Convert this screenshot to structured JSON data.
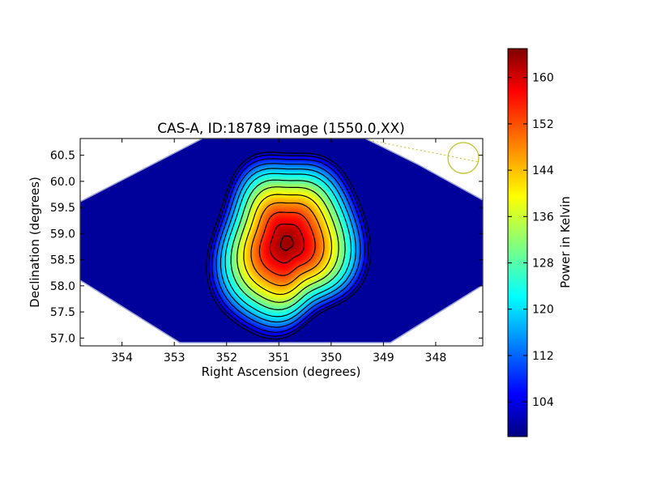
{
  "chart_data": {
    "type": "heatmap",
    "title": "CAS-A, ID:18789 image (1550.0,XX)",
    "xlabel": "Right Ascension (degrees)",
    "ylabel": "Declination (degrees)",
    "xlim": [
      354.8,
      347.1
    ],
    "ylim": [
      56.85,
      60.82
    ],
    "x_ticks": [
      {
        "value": 354,
        "label": "354"
      },
      {
        "value": 353,
        "label": "353"
      },
      {
        "value": 352,
        "label": "352"
      },
      {
        "value": 351,
        "label": "351"
      },
      {
        "value": 350,
        "label": "350"
      },
      {
        "value": 349,
        "label": "349"
      },
      {
        "value": 348,
        "label": "348"
      }
    ],
    "y_ticks": [
      {
        "value": 57.0,
        "label": "57.0"
      },
      {
        "value": 57.5,
        "label": "57.5"
      },
      {
        "value": 58.0,
        "label": "58.0"
      },
      {
        "value": 58.5,
        "label": "58.5"
      },
      {
        "value": 59.0,
        "label": "59.0"
      },
      {
        "value": 59.5,
        "label": "59.5"
      },
      {
        "value": 60.0,
        "label": "60.0"
      },
      {
        "value": 60.5,
        "label": "60.5"
      }
    ],
    "source": {
      "ra": 350.85,
      "dec": 58.82,
      "peak": 164,
      "label": "CAS-A"
    },
    "background_level": 100,
    "colorbar": {
      "label": "Power in Kelvin",
      "colormap": "jet",
      "range": [
        98,
        165
      ],
      "ticks": [
        {
          "value": 104,
          "label": "104"
        },
        {
          "value": 112,
          "label": "112"
        },
        {
          "value": 120,
          "label": "120"
        },
        {
          "value": 128,
          "label": "128"
        },
        {
          "value": 136,
          "label": "136"
        },
        {
          "value": 144,
          "label": "144"
        },
        {
          "value": 152,
          "label": "152"
        },
        {
          "value": 160,
          "label": "160"
        }
      ]
    },
    "contour_levels": [
      101,
      104,
      108,
      113,
      118,
      123,
      129,
      135,
      141,
      147,
      153,
      159,
      163
    ],
    "beam_marker": {
      "ra": 347.4,
      "dec": 60.47,
      "color": "#c0c020"
    },
    "grid": false
  }
}
